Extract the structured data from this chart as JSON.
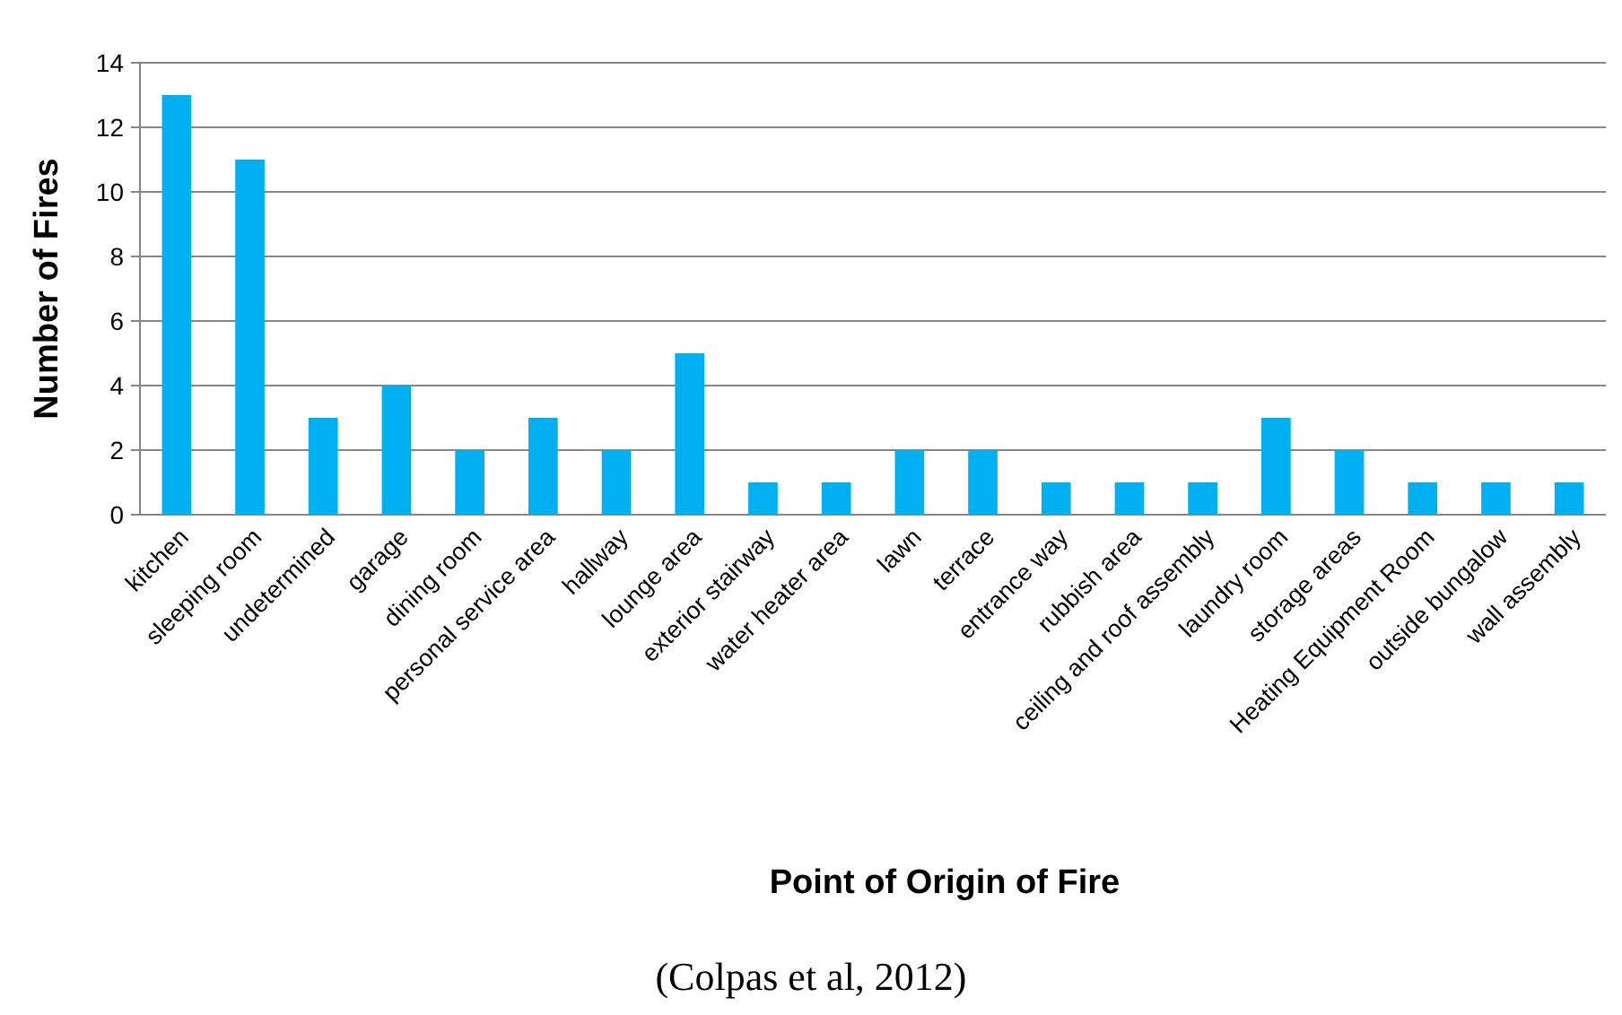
{
  "chart_data": {
    "type": "bar",
    "xlabel": "Point of Origin of Fire",
    "ylabel": "Number of Fires",
    "annotations": [
      "(Colpas et al, 2012)"
    ],
    "categories": [
      "kitchen",
      "sleeping room",
      "undetermined",
      "garage",
      "dining room",
      "personal service area",
      "hallway",
      "lounge area",
      "exterior stairway",
      "water heater area",
      "lawn",
      "terrace",
      "entrance way",
      "rubbish area",
      "ceiling and roof assembly",
      "laundry room",
      "storage areas",
      "Heating Equipment Room",
      "outside bungalow",
      "wall assembly"
    ],
    "values": [
      13,
      11,
      3,
      4,
      2,
      3,
      2,
      5,
      1,
      1,
      2,
      2,
      1,
      1,
      1,
      3,
      2,
      1,
      1,
      1
    ],
    "color": "#00b0f0",
    "ylim": [
      0,
      14
    ],
    "yticks": [
      0,
      2,
      4,
      6,
      8,
      10,
      12,
      14
    ],
    "grid": "y"
  }
}
